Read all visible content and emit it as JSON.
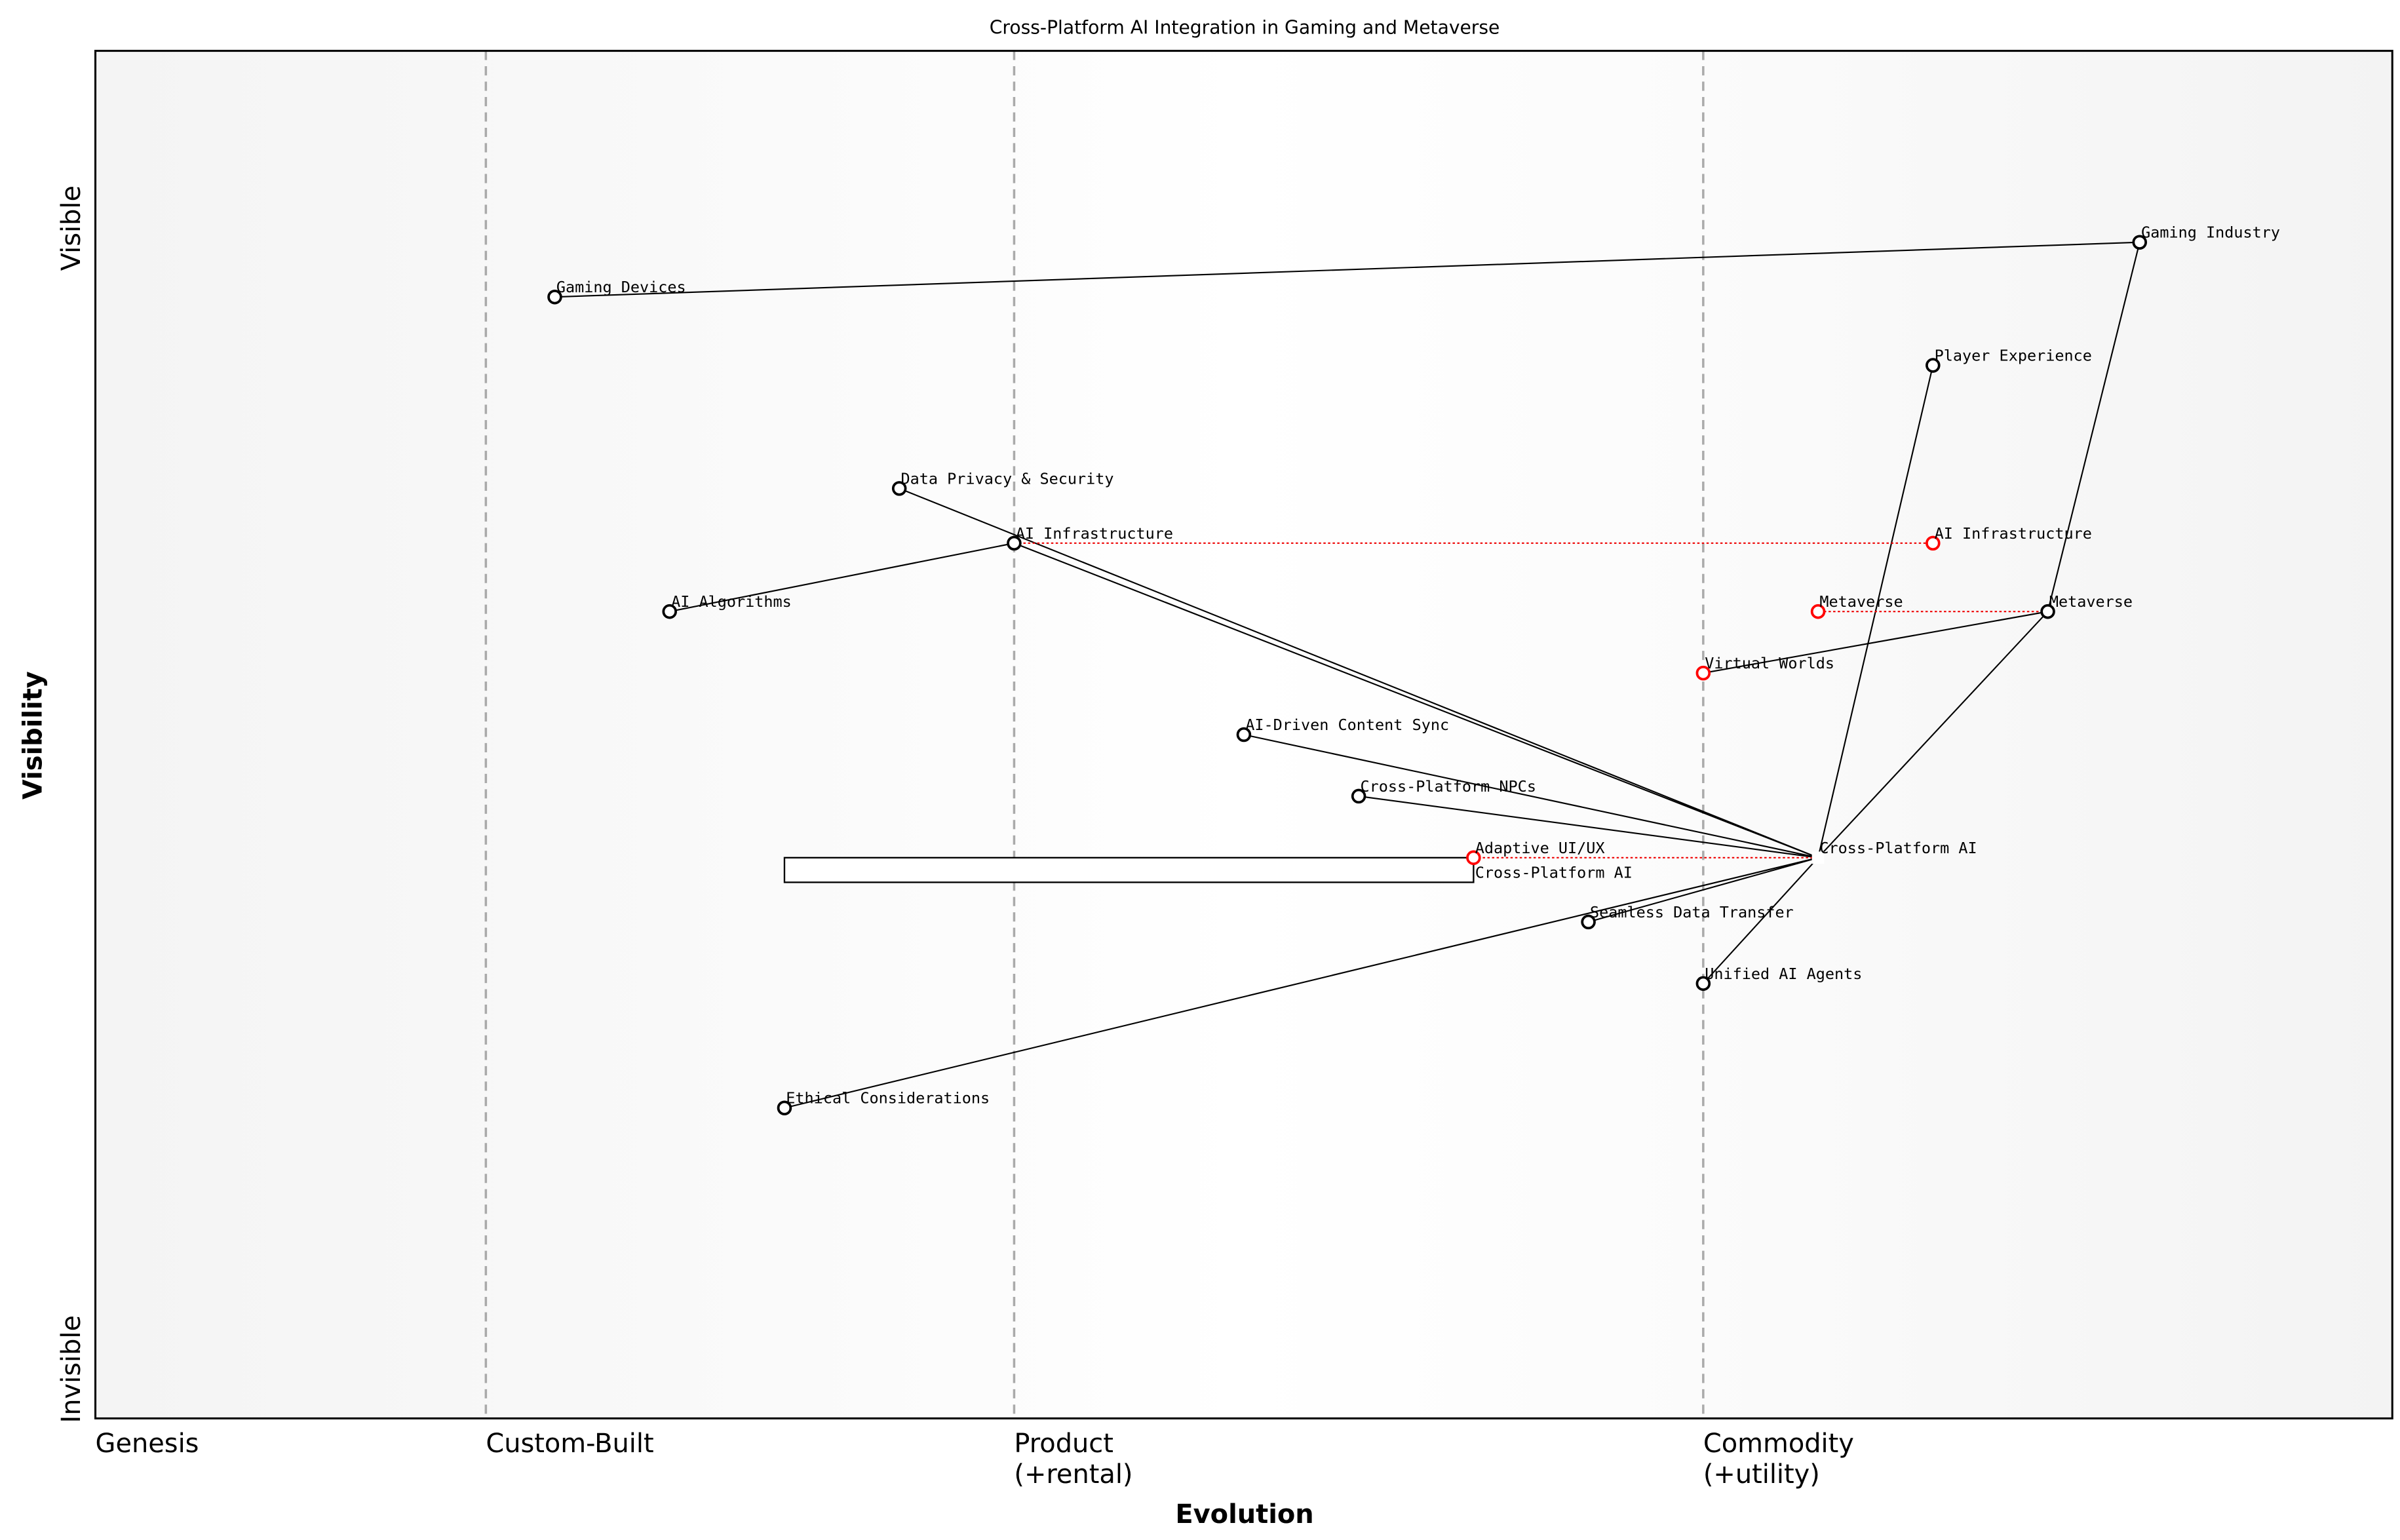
{
  "title": "Cross-Platform AI Integration in Gaming and Metaverse",
  "axes": {
    "x_label": "Evolution",
    "y_label": "Visibility",
    "y_top": "Visible",
    "y_bottom": "Invisible",
    "stages": [
      {
        "label": "Genesis",
        "sub": "",
        "evolution": 0.0
      },
      {
        "label": "Custom-Built",
        "sub": "",
        "evolution": 0.17
      },
      {
        "label": "Product",
        "sub": "(+rental)",
        "evolution": 0.4
      },
      {
        "label": "Commodity",
        "sub": "(+utility)",
        "evolution": 0.7
      }
    ]
  },
  "components": [
    {
      "id": "gi",
      "label": "Gaming Industry",
      "evolution": 0.89,
      "visibility": 0.86,
      "color": "#000000"
    },
    {
      "id": "gd",
      "label": "Gaming Devices",
      "evolution": 0.2,
      "visibility": 0.82,
      "color": "#000000"
    },
    {
      "id": "pe",
      "label": "Player Experience",
      "evolution": 0.8,
      "visibility": 0.77,
      "color": "#000000"
    },
    {
      "id": "dps",
      "label": "Data Privacy & Security",
      "evolution": 0.35,
      "visibility": 0.68,
      "color": "#000000"
    },
    {
      "id": "ai",
      "label": "AI Infrastructure",
      "evolution": 0.4,
      "visibility": 0.64,
      "color": "#000000"
    },
    {
      "id": "ai2",
      "label": "AI Infrastructure",
      "evolution": 0.8,
      "visibility": 0.64,
      "color": "#ff0000"
    },
    {
      "id": "alg",
      "label": "AI Algorithms",
      "evolution": 0.25,
      "visibility": 0.59,
      "color": "#000000"
    },
    {
      "id": "mv2",
      "label": "Metaverse",
      "evolution": 0.75,
      "visibility": 0.59,
      "color": "#ff0000"
    },
    {
      "id": "mv",
      "label": "Metaverse",
      "evolution": 0.85,
      "visibility": 0.59,
      "color": "#000000"
    },
    {
      "id": "vw",
      "label": "Virtual Worlds",
      "evolution": 0.7,
      "visibility": 0.545,
      "color": "#ff0000"
    },
    {
      "id": "cs",
      "label": "AI-Driven Content Sync",
      "evolution": 0.5,
      "visibility": 0.5,
      "color": "#000000"
    },
    {
      "id": "npc",
      "label": "Cross-Platform NPCs",
      "evolution": 0.55,
      "visibility": 0.455,
      "color": "#000000"
    },
    {
      "id": "ui",
      "label": "Adaptive UI/UX",
      "evolution": 0.6,
      "visibility": 0.41,
      "color": "#ff0000"
    },
    {
      "id": "ui_cp",
      "label": "Cross-Platform AI",
      "evolution": 0.6,
      "visibility": 0.41,
      "color": "none"
    },
    {
      "id": "cp",
      "label": "Cross-Platform AI",
      "evolution": 0.75,
      "visibility": 0.41,
      "color": "#ffffff"
    },
    {
      "id": "sdt",
      "label": "Seamless Data Transfer",
      "evolution": 0.65,
      "visibility": 0.363,
      "color": "#000000"
    },
    {
      "id": "ua",
      "label": "Unified AI Agents",
      "evolution": 0.7,
      "visibility": 0.318,
      "color": "#000000"
    },
    {
      "id": "ec",
      "label": "Ethical Considerations",
      "evolution": 0.3,
      "visibility": 0.227,
      "color": "#000000"
    }
  ],
  "links": [
    [
      "gd",
      "gi"
    ],
    [
      "gi",
      "mv"
    ],
    [
      "mv",
      "cp"
    ],
    [
      "mv",
      "vw"
    ],
    [
      "pe",
      "cp"
    ],
    [
      "dps",
      "cp"
    ],
    [
      "ai",
      "cp"
    ],
    [
      "alg",
      "ai"
    ],
    [
      "cs",
      "cp"
    ],
    [
      "npc",
      "cp"
    ],
    [
      "sdt",
      "cp"
    ],
    [
      "ua",
      "cp"
    ],
    [
      "ec",
      "cp"
    ]
  ],
  "evolve_links": [
    [
      "ai",
      "ai2"
    ],
    [
      "mv",
      "mv2"
    ],
    [
      "ui",
      "cp"
    ]
  ],
  "pipeline": {
    "from_evolution": 0.3,
    "to_evolution": 0.6,
    "visibility": 0.41
  }
}
